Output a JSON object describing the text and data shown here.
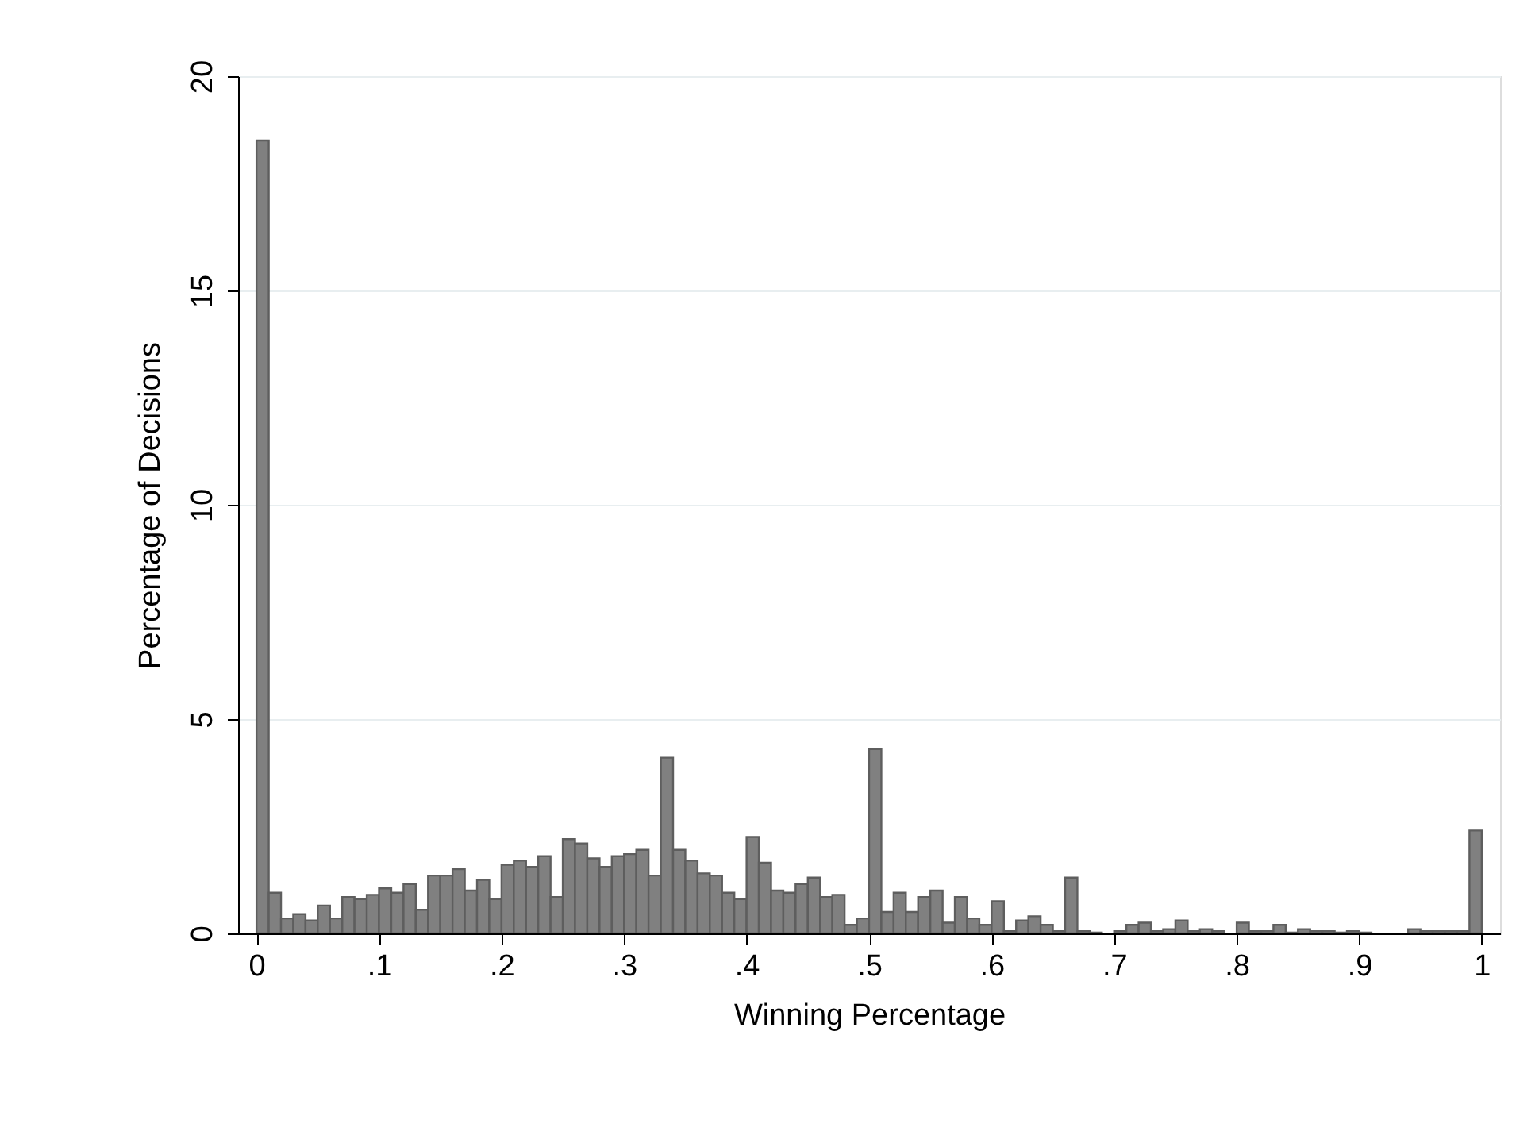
{
  "chart_data": {
    "type": "histogram",
    "xlabel": "Winning Percentage",
    "ylabel": "Percentage of Decisions",
    "color": "#808080",
    "bins": [
      0,
      0.01,
      0.02,
      0.03,
      0.04,
      0.05,
      0.06,
      0.07,
      0.08,
      0.09,
      0.1,
      0.11,
      0.12,
      0.13,
      0.14,
      0.15,
      0.16,
      0.17,
      0.18,
      0.19,
      0.2,
      0.21,
      0.22,
      0.23,
      0.24,
      0.25,
      0.26,
      0.27,
      0.28,
      0.29,
      0.3,
      0.31,
      0.32,
      0.33,
      0.34,
      0.35,
      0.36,
      0.37,
      0.38,
      0.39,
      0.4,
      0.41,
      0.42,
      0.43,
      0.44,
      0.45,
      0.46,
      0.47,
      0.48,
      0.49,
      0.5,
      0.51,
      0.52,
      0.53,
      0.54,
      0.55,
      0.56,
      0.57,
      0.58,
      0.59,
      0.6,
      0.61,
      0.62,
      0.63,
      0.64,
      0.65,
      0.66,
      0.67,
      0.68,
      0.69,
      0.7,
      0.71,
      0.72,
      0.73,
      0.74,
      0.75,
      0.76,
      0.77,
      0.78,
      0.79,
      0.8,
      0.81,
      0.82,
      0.83,
      0.84,
      0.85,
      0.86,
      0.87,
      0.88,
      0.89,
      0.9,
      0.91,
      0.92,
      0.93,
      0.94,
      0.95,
      0.96,
      0.97,
      0.98,
      0.99,
      1
    ],
    "values": [
      18.5,
      0.95,
      0.35,
      0.45,
      0.3,
      0.65,
      0.35,
      0.85,
      0.8,
      0.9,
      1.05,
      0.95,
      1.15,
      0.55,
      1.35,
      1.35,
      1.5,
      1.0,
      1.25,
      0.8,
      1.6,
      1.7,
      1.55,
      1.8,
      0.85,
      2.2,
      2.1,
      1.75,
      1.55,
      1.8,
      1.85,
      1.95,
      1.35,
      4.1,
      1.95,
      1.7,
      1.4,
      1.35,
      0.95,
      0.8,
      2.25,
      1.65,
      1.0,
      0.95,
      1.15,
      1.3,
      0.85,
      0.9,
      0.2,
      0.35,
      4.3,
      0.5,
      0.95,
      0.5,
      0.85,
      1.0,
      0.25,
      0.85,
      0.35,
      0.2,
      0.75,
      0.05,
      0.3,
      0.4,
      0.2,
      0.05,
      1.3,
      0.05,
      0.02,
      0,
      0.05,
      0.2,
      0.25,
      0.05,
      0.1,
      0.3,
      0.05,
      0.1,
      0.05,
      0,
      0.25,
      0.05,
      0.05,
      0.2,
      0.02,
      0.1,
      0.05,
      0.05,
      0.02,
      0.05,
      0.02,
      0,
      0,
      0,
      0.1,
      0.05,
      0.05,
      0.05,
      0.05,
      2.4
    ],
    "xlim": [
      -0.015,
      1.015
    ],
    "ylim": [
      0,
      20
    ],
    "xticks": [
      0,
      {
        "value": 0.1,
        "label": ".1"
      },
      {
        "value": 0.2,
        "label": ".2"
      },
      {
        "value": 0.3,
        "label": ".3"
      },
      {
        "value": 0.4,
        "label": ".4"
      },
      {
        "value": 0.5,
        "label": ".5"
      },
      {
        "value": 0.6,
        "label": ".6"
      },
      {
        "value": 0.7,
        "label": ".7"
      },
      {
        "value": 0.8,
        "label": ".8"
      },
      {
        "value": 0.9,
        "label": ".9"
      },
      1
    ],
    "yticks": [
      0,
      5,
      10,
      15,
      20
    ],
    "grid": "y"
  }
}
